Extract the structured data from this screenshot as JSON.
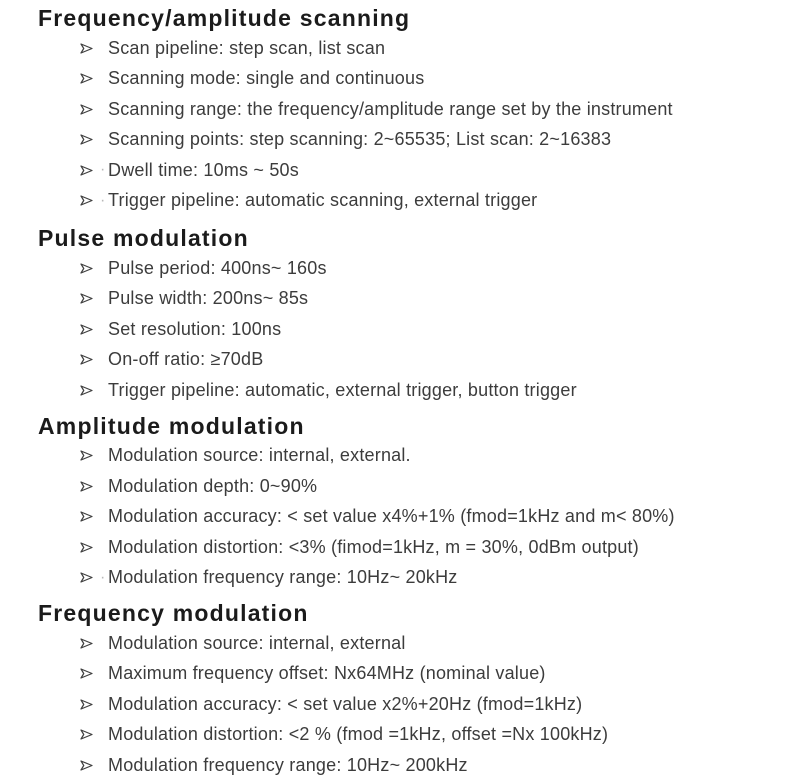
{
  "page": {
    "background_color": "#ffffff",
    "heading_color": "#1b1b1b",
    "body_text_color": "#3c3c3c",
    "bullet_color": "#3f3f3f"
  },
  "bullet": {
    "icon": "arrowhead-right-outline",
    "glyph": "➢"
  },
  "sections": [
    {
      "title": "Frequency/amplitude scanning",
      "items": [
        {
          "text": "Scan pipeline: step scan, list scan",
          "leading_dot": false
        },
        {
          "text": "Scanning mode: single and continuous",
          "leading_dot": false
        },
        {
          "text": "Scanning range: the frequency/amplitude range set by the instrument",
          "leading_dot": false
        },
        {
          "text": "Scanning points: step scanning: 2~65535; List scan: 2~16383",
          "leading_dot": false
        },
        {
          "text": "Dwell time: 10ms ~ 50s",
          "leading_dot": true
        },
        {
          "text": "Trigger pipeline: automatic scanning, external trigger",
          "leading_dot": true
        }
      ]
    },
    {
      "title": "Pulse modulation",
      "items": [
        {
          "text": "Pulse period: 400ns~ 160s",
          "leading_dot": false
        },
        {
          "text": "Pulse width: 200ns~ 85s",
          "leading_dot": false
        },
        {
          "text": "Set resolution: 100ns",
          "leading_dot": false
        },
        {
          "text": "On-off ratio: ≥70dB",
          "leading_dot": false
        },
        {
          "text": "Trigger pipeline: automatic, external trigger, button trigger",
          "leading_dot": false
        }
      ]
    },
    {
      "title": "Amplitude modulation",
      "items": [
        {
          "text": "Modulation source: internal, external.",
          "leading_dot": false
        },
        {
          "text": "Modulation depth: 0~90%",
          "leading_dot": false
        },
        {
          "text": "Modulation accuracy: < set value x4%+1% (fmod=1kHz and m< 80%)",
          "leading_dot": false
        },
        {
          "text": "Modulation distortion: <3% (fimod=1kHz, m = 30%, 0dBm output)",
          "leading_dot": false
        },
        {
          "text": "Modulation frequency range: 10Hz~ 20kHz",
          "leading_dot": true
        }
      ]
    },
    {
      "title": "Frequency modulation",
      "items": [
        {
          "text": "Modulation source: internal, external",
          "leading_dot": false
        },
        {
          "text": "Maximum frequency offset: Nx64MHz (nominal value)",
          "leading_dot": false
        },
        {
          "text": "Modulation accuracy: < set value x2%+20Hz (fmod=1kHz)",
          "leading_dot": false
        },
        {
          "text": "Modulation distortion: <2 % (fmod =1kHz, offset =Nx 100kHz)",
          "leading_dot": false
        },
        {
          "text": "Modulation frequency range: 10Hz~ 200kHz",
          "leading_dot": false
        }
      ]
    }
  ]
}
